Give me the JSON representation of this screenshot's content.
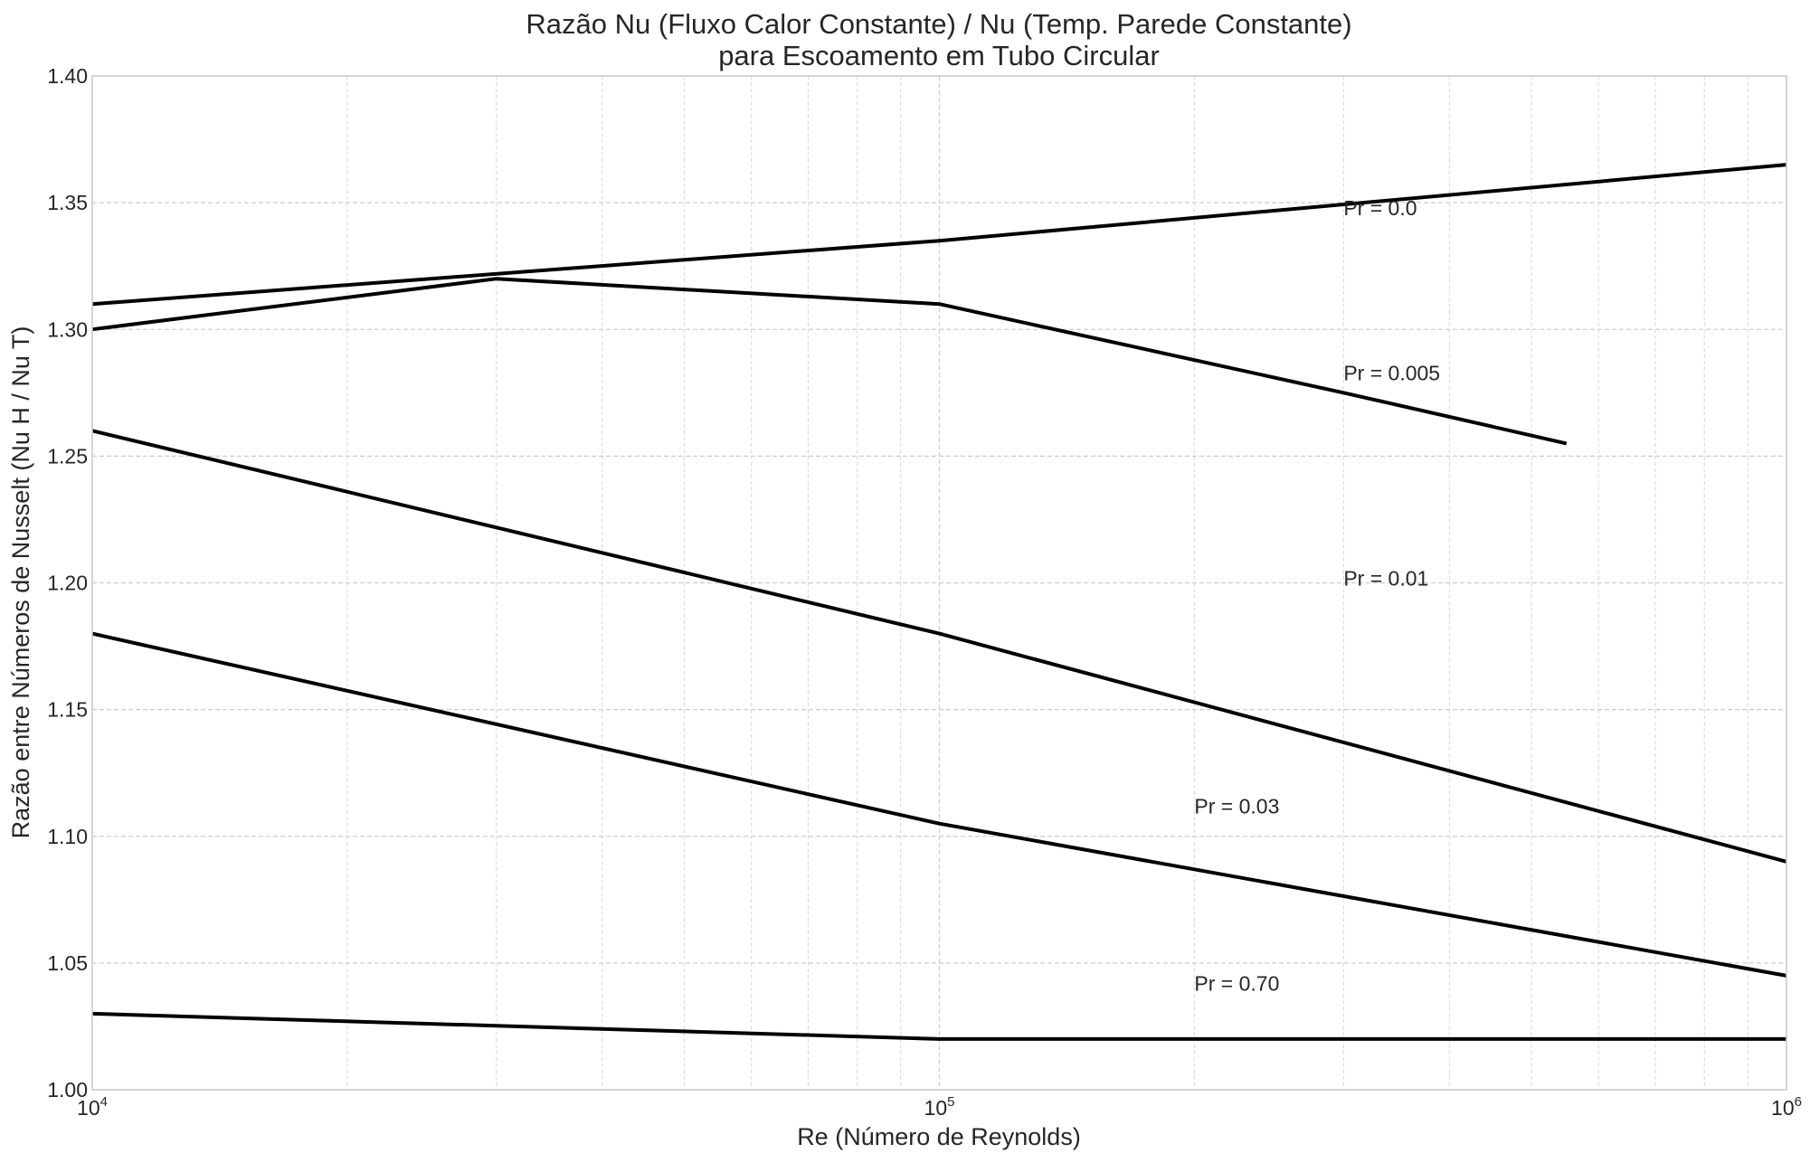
{
  "chart_data": {
    "type": "line",
    "title": "Razão Nu (Fluxo Calor Constante) / Nu (Temp. Parede Constante)",
    "subtitle": "para Escoamento em Tubo Circular",
    "xlabel": "Re (Número de Reynolds)",
    "ylabel": "Razão entre Números de Nusselt (Nu H / Nu T)",
    "xscale": "log",
    "xlim": [
      10000,
      1000000
    ],
    "ylim": [
      1.0,
      1.4
    ],
    "grid": true,
    "x_ticks": [
      {
        "value": 10000,
        "base": "10",
        "exp": "4"
      },
      {
        "value": 100000,
        "base": "10",
        "exp": "5"
      },
      {
        "value": 1000000,
        "base": "10",
        "exp": "6"
      }
    ],
    "y_ticks": [
      "1.00",
      "1.05",
      "1.10",
      "1.15",
      "1.20",
      "1.25",
      "1.30",
      "1.35",
      "1.40"
    ],
    "line_color": "#000000",
    "series": [
      {
        "label": "Pr = 0.0",
        "label_x": 300000,
        "label_y": 1.345,
        "x": [
          10000,
          100000,
          1000000
        ],
        "y": [
          1.31,
          1.335,
          1.365
        ]
      },
      {
        "label": "Pr = 0.005",
        "label_x": 300000,
        "label_y": 1.28,
        "x": [
          10000,
          30000,
          100000,
          300000,
          550000
        ],
        "y": [
          1.3,
          1.32,
          1.31,
          1.275,
          1.255
        ]
      },
      {
        "label": "Pr = 0.01",
        "label_x": 300000,
        "label_y": 1.199,
        "x": [
          10000,
          100000,
          1000000
        ],
        "y": [
          1.26,
          1.18,
          1.09
        ]
      },
      {
        "label": "Pr = 0.03",
        "label_x": 200000,
        "label_y": 1.109,
        "x": [
          10000,
          100000,
          1000000
        ],
        "y": [
          1.18,
          1.105,
          1.045
        ]
      },
      {
        "label": "Pr = 0.70",
        "label_x": 200000,
        "label_y": 1.039,
        "x": [
          10000,
          100000,
          1000000
        ],
        "y": [
          1.03,
          1.02,
          1.02
        ]
      }
    ]
  }
}
